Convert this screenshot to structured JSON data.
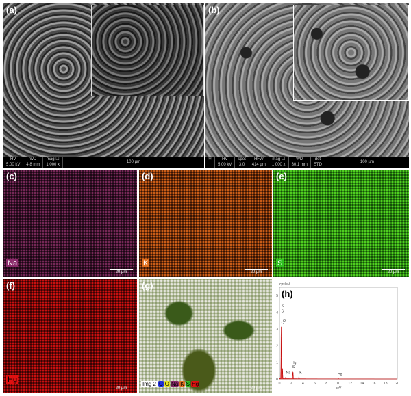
{
  "panels": {
    "a": {
      "label": "(a)",
      "hv_label": "HV",
      "hv": "5.00 kV",
      "wd_label": "WD",
      "wd": "4.8 mm",
      "mag_label": "mag ☐",
      "mag": "1 000 x",
      "scale": "100 µm"
    },
    "b": {
      "label": "(b)",
      "hv_label": "HV",
      "hv": "5.00 kV",
      "spot_label": "spot",
      "spot": "3.0",
      "hfw_label": "HFW",
      "hfw": "414 µm",
      "mag_label": "mag ☐",
      "mag": "1 000 x",
      "wd_label": "WD",
      "wd": "30.1 mm",
      "det_label": "det",
      "det": "ETD",
      "scale": "100 µm"
    },
    "c": {
      "label": "(c)",
      "element": "Na",
      "color": "#b0508a",
      "scale": "20 µm"
    },
    "d": {
      "label": "(d)",
      "element": "K",
      "color": "#e07020",
      "scale": "20 µm"
    },
    "e": {
      "label": "(e)",
      "element": "S",
      "color": "#3cc21a",
      "scale": "20 µm"
    },
    "f": {
      "label": "(f)",
      "element": "Hg",
      "color": "#e01010",
      "scale": "20 µm"
    },
    "g": {
      "label": "(g)",
      "legend_title": "Img 2",
      "legend": [
        {
          "t": "C",
          "c": "#2030e0"
        },
        {
          "t": "O",
          "c": "#e0e020"
        },
        {
          "t": "Na",
          "c": "#8a2a6a"
        },
        {
          "t": "K",
          "c": "#e07020"
        },
        {
          "t": "S",
          "c": "#30c020"
        },
        {
          "t": "Hg",
          "c": "#e01010"
        }
      ],
      "scale": "20 µm"
    },
    "h": {
      "label": "(h)"
    }
  },
  "chart_data": {
    "type": "line",
    "title": "",
    "xlabel": "keV",
    "ylabel": "cps/eV",
    "xlim": [
      0,
      20
    ],
    "ylim": [
      0,
      5.5
    ],
    "xticks": [
      "0",
      "2",
      "4",
      "6",
      "8",
      "10",
      "12",
      "14",
      "16",
      "18",
      "20"
    ],
    "yticks": [
      "0",
      "1",
      "2",
      "3",
      "4",
      "5"
    ],
    "peaks": [
      {
        "x": 0.28,
        "y": 3.1
      },
      {
        "x": 0.52,
        "y": 0.6
      },
      {
        "x": 1.04,
        "y": 0.08
      },
      {
        "x": 2.2,
        "y": 0.45
      },
      {
        "x": 2.31,
        "y": 0.4
      },
      {
        "x": 3.31,
        "y": 0.18
      },
      {
        "x": 9.99,
        "y": 0.05
      }
    ],
    "annotations": [
      {
        "t": "K",
        "x": 0.3,
        "y": 4.3
      },
      {
        "t": "S",
        "x": 0.3,
        "y": 4.0
      },
      {
        "t": "C",
        "x": 0.3,
        "y": 3.3
      },
      {
        "t": "O",
        "x": 0.6,
        "y": 3.4
      },
      {
        "t": "Na",
        "x": 1.1,
        "y": 0.3
      },
      {
        "t": "Hg",
        "x": 2.1,
        "y": 0.9
      },
      {
        "t": "S",
        "x": 2.2,
        "y": 0.65
      },
      {
        "t": "K",
        "x": 3.4,
        "y": 0.3
      },
      {
        "t": "Hg",
        "x": 9.9,
        "y": 0.2
      }
    ]
  }
}
